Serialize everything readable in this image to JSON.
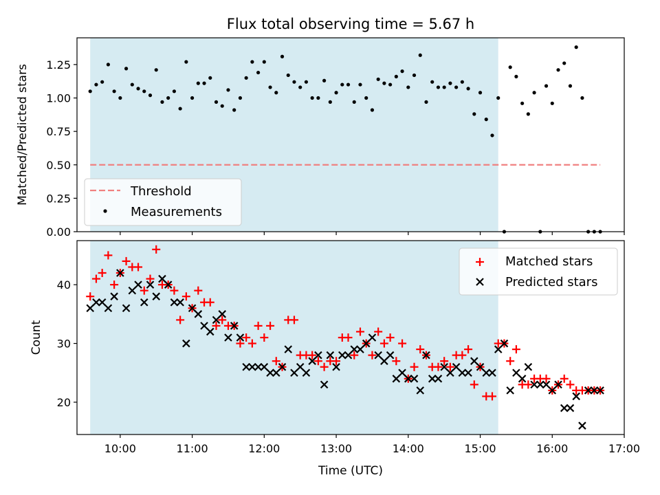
{
  "title": "Flux total observing time = 5.67 h",
  "xlabel": "Time (UTC)",
  "colors": {
    "shade": "#add8e6",
    "threshold": "#f08080",
    "matched": "#ff0000",
    "predicted": "#000000"
  },
  "chart_data": [
    {
      "type": "scatter",
      "ylabel": "Matched/Predicted stars",
      "ylim": [
        0,
        1.45
      ],
      "xlim": [
        "09:24",
        "17:00"
      ],
      "yticks": [
        "0.00",
        "0.25",
        "0.50",
        "0.75",
        "1.00",
        "1.25"
      ],
      "shaded_interval": [
        "09:35",
        "15:15"
      ],
      "threshold": {
        "name": "Threshold",
        "value": 0.5,
        "x_range": [
          "09:35",
          "16:40"
        ]
      },
      "legend": {
        "placement": "lower-left",
        "entries": [
          "Threshold",
          "Measurements"
        ]
      },
      "series": [
        {
          "name": "Measurements",
          "x": [
            "09:35",
            "09:40",
            "09:45",
            "09:50",
            "09:55",
            "10:00",
            "10:05",
            "10:10",
            "10:15",
            "10:20",
            "10:25",
            "10:30",
            "10:35",
            "10:40",
            "10:45",
            "10:50",
            "10:55",
            "11:00",
            "11:05",
            "11:10",
            "11:15",
            "11:20",
            "11:25",
            "11:30",
            "11:35",
            "11:40",
            "11:45",
            "11:50",
            "11:55",
            "12:00",
            "12:05",
            "12:10",
            "12:15",
            "12:20",
            "12:25",
            "12:30",
            "12:35",
            "12:40",
            "12:45",
            "12:50",
            "12:55",
            "13:00",
            "13:05",
            "13:10",
            "13:15",
            "13:20",
            "13:25",
            "13:30",
            "13:35",
            "13:40",
            "13:45",
            "13:50",
            "13:55",
            "14:00",
            "14:05",
            "14:10",
            "14:15",
            "14:20",
            "14:25",
            "14:30",
            "14:35",
            "14:40",
            "14:45",
            "14:50",
            "14:55",
            "15:00",
            "15:05",
            "15:10",
            "15:15",
            "15:20",
            "15:25",
            "15:30",
            "15:35",
            "15:40",
            "15:45",
            "15:50",
            "15:55",
            "16:00",
            "16:05",
            "16:10",
            "16:15",
            "16:20",
            "16:25",
            "16:30",
            "16:35",
            "16:40"
          ],
          "y": [
            1.05,
            1.1,
            1.12,
            1.25,
            1.05,
            1.0,
            1.22,
            1.1,
            1.07,
            1.05,
            1.02,
            1.21,
            0.97,
            1.0,
            1.05,
            0.92,
            1.27,
            1.0,
            1.11,
            1.11,
            1.15,
            0.97,
            0.94,
            1.06,
            0.91,
            1.0,
            1.15,
            1.27,
            1.19,
            1.27,
            1.08,
            1.04,
            1.31,
            1.17,
            1.12,
            1.08,
            1.12,
            1.0,
            1.0,
            1.13,
            0.97,
            1.04,
            1.1,
            1.1,
            0.97,
            1.1,
            1.0,
            0.91,
            1.14,
            1.11,
            1.1,
            1.16,
            1.2,
            1.08,
            1.17,
            1.32,
            0.97,
            1.12,
            1.08,
            1.08,
            1.11,
            1.08,
            1.12,
            1.07,
            0.88,
            1.04,
            0.84,
            0.72,
            1.0,
            0.0,
            1.23,
            1.16,
            0.96,
            0.88,
            1.04,
            0.0,
            1.09,
            0.96,
            1.21,
            1.26,
            1.09,
            1.38,
            1.0,
            0.0,
            0.0,
            0.0
          ]
        }
      ]
    },
    {
      "type": "scatter",
      "ylabel": "Count",
      "ylim": [
        14.5,
        47.5
      ],
      "xlim": [
        "09:24",
        "17:00"
      ],
      "yticks": [
        "20",
        "30",
        "40"
      ],
      "xticks": [
        "10:00",
        "11:00",
        "12:00",
        "13:00",
        "14:00",
        "15:00",
        "16:00",
        "17:00"
      ],
      "shaded_interval": [
        "09:35",
        "15:15"
      ],
      "legend": {
        "placement": "top-right",
        "entries": [
          "Matched stars",
          "Predicted stars"
        ]
      },
      "series": [
        {
          "name": "Matched stars",
          "x": [
            "09:35",
            "09:40",
            "09:45",
            "09:50",
            "09:55",
            "10:00",
            "10:05",
            "10:10",
            "10:15",
            "10:20",
            "10:25",
            "10:30",
            "10:35",
            "10:40",
            "10:45",
            "10:50",
            "10:55",
            "11:00",
            "11:05",
            "11:10",
            "11:15",
            "11:20",
            "11:25",
            "11:30",
            "11:35",
            "11:40",
            "11:45",
            "11:50",
            "11:55",
            "12:00",
            "12:05",
            "12:10",
            "12:15",
            "12:20",
            "12:25",
            "12:30",
            "12:35",
            "12:40",
            "12:45",
            "12:50",
            "12:55",
            "13:00",
            "13:05",
            "13:10",
            "13:15",
            "13:20",
            "13:25",
            "13:30",
            "13:35",
            "13:40",
            "13:45",
            "13:50",
            "13:55",
            "14:00",
            "14:05",
            "14:10",
            "14:15",
            "14:20",
            "14:25",
            "14:30",
            "14:35",
            "14:40",
            "14:45",
            "14:50",
            "14:55",
            "15:00",
            "15:05",
            "15:10",
            "15:15",
            "15:20",
            "15:25",
            "15:30",
            "15:35",
            "15:40",
            "15:45",
            "15:50",
            "15:55",
            "16:00",
            "16:05",
            "16:10",
            "16:15",
            "16:20",
            "16:25",
            "16:30",
            "16:35",
            "16:40"
          ],
          "y": [
            38,
            41,
            42,
            45,
            40,
            42,
            44,
            43,
            43,
            39,
            41,
            46,
            40,
            40,
            39,
            34,
            38,
            36,
            39,
            37,
            37,
            33,
            34,
            33,
            33,
            30,
            31,
            30,
            33,
            31,
            33,
            27,
            26,
            34,
            34,
            28,
            28,
            28,
            27,
            26,
            27,
            27,
            31,
            31,
            28,
            32,
            30,
            28,
            32,
            30,
            31,
            27,
            30,
            24,
            26,
            29,
            28,
            26,
            26,
            27,
            26,
            28,
            28,
            29,
            23,
            26,
            21,
            21,
            30,
            30,
            27,
            29,
            23,
            23,
            24,
            24,
            24,
            22,
            23,
            24,
            23,
            22,
            22,
            22,
            22,
            22
          ]
        },
        {
          "name": "Predicted stars",
          "x": [
            "09:35",
            "09:40",
            "09:45",
            "09:50",
            "09:55",
            "10:00",
            "10:05",
            "10:10",
            "10:15",
            "10:20",
            "10:25",
            "10:30",
            "10:35",
            "10:40",
            "10:45",
            "10:50",
            "10:55",
            "11:00",
            "11:05",
            "11:10",
            "11:15",
            "11:20",
            "11:25",
            "11:30",
            "11:35",
            "11:40",
            "11:45",
            "11:50",
            "11:55",
            "12:00",
            "12:05",
            "12:10",
            "12:15",
            "12:20",
            "12:25",
            "12:30",
            "12:35",
            "12:40",
            "12:45",
            "12:50",
            "12:55",
            "13:00",
            "13:05",
            "13:10",
            "13:15",
            "13:20",
            "13:25",
            "13:30",
            "13:35",
            "13:40",
            "13:45",
            "13:50",
            "13:55",
            "14:00",
            "14:05",
            "14:10",
            "14:15",
            "14:20",
            "14:25",
            "14:30",
            "14:35",
            "14:40",
            "14:45",
            "14:50",
            "14:55",
            "15:00",
            "15:05",
            "15:10",
            "15:15",
            "15:20",
            "15:25",
            "15:30",
            "15:35",
            "15:40",
            "15:45",
            "15:50",
            "15:55",
            "16:00",
            "16:05",
            "16:10",
            "16:15",
            "16:20",
            "16:25",
            "16:30",
            "16:35",
            "16:40"
          ],
          "y": [
            36,
            37,
            37,
            36,
            38,
            42,
            36,
            39,
            40,
            37,
            40,
            38,
            41,
            40,
            37,
            37,
            30,
            36,
            35,
            33,
            32,
            34,
            35,
            31,
            33,
            31,
            26,
            26,
            26,
            26,
            25,
            25,
            26,
            29,
            25,
            26,
            25,
            27,
            28,
            23,
            28,
            26,
            28,
            28,
            29,
            29,
            30,
            31,
            28,
            27,
            28,
            24,
            25,
            24,
            24,
            22,
            28,
            24,
            24,
            26,
            25,
            26,
            25,
            25,
            27,
            26,
            25,
            25,
            29,
            30,
            22,
            25,
            24,
            26,
            23,
            23,
            23,
            22,
            23,
            19,
            19,
            21,
            16,
            22,
            22,
            22
          ]
        }
      ]
    }
  ]
}
